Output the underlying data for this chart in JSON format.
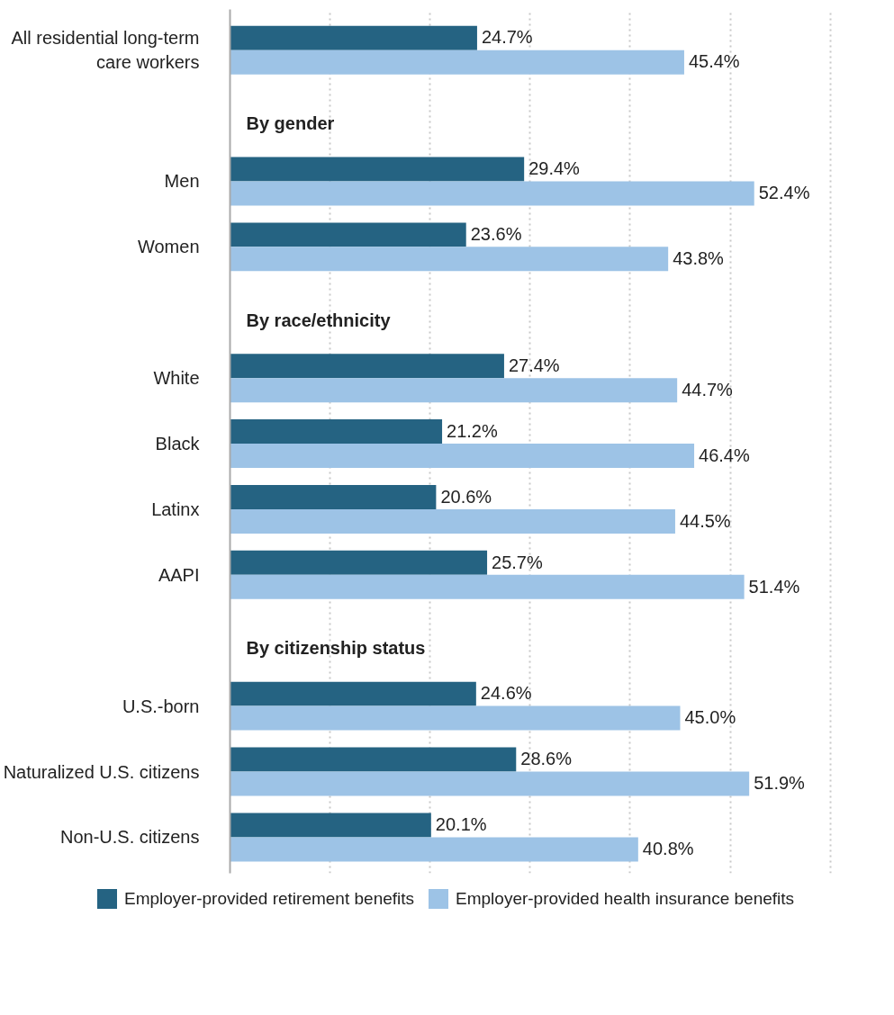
{
  "chart_data": {
    "type": "bar",
    "orientation": "horizontal",
    "categories": [
      "All residential long-term care workers",
      "By gender",
      "Men",
      "Women",
      "By race/ethnicity",
      "White",
      "Black",
      "Latinx",
      "AAPI",
      "By citizenship status",
      "U.S.-born",
      "Naturalized U.S. citizens",
      "Non-U.S. citizens"
    ],
    "series": [
      {
        "name": "Employer-provided retirement benefits",
        "color": "#256382",
        "values": [
          24.7,
          null,
          29.4,
          23.6,
          null,
          27.4,
          21.2,
          20.6,
          25.7,
          null,
          24.6,
          28.6,
          20.1
        ],
        "value_labels": [
          "24.7%",
          null,
          "29.4%",
          "23.6%",
          null,
          "27.4%",
          "21.2%",
          "20.6%",
          "25.7%",
          null,
          "24.6%",
          "28.6%",
          "20.1%"
        ]
      },
      {
        "name": "Employer-provided health insurance benefits",
        "color": "#9dc3e6",
        "values": [
          45.4,
          null,
          52.4,
          43.8,
          null,
          44.7,
          46.4,
          44.5,
          51.4,
          null,
          45.0,
          51.9,
          40.8
        ],
        "value_labels": [
          "45.4%",
          null,
          "52.4%",
          "43.8%",
          null,
          "44.7%",
          "46.4%",
          "44.5%",
          "51.4%",
          null,
          "45.0%",
          "51.9%",
          "40.8%"
        ]
      }
    ],
    "xticks": [
      {
        "value": 10,
        "label": null
      },
      {
        "value": 20,
        "label": null
      },
      {
        "value": 30,
        "label": null
      },
      {
        "value": 40,
        "label": null
      },
      {
        "value": 50,
        "label": null
      },
      {
        "value": 60,
        "label": null
      }
    ],
    "tick_labels": "y",
    "grid": "x",
    "legend": "bottom"
  }
}
